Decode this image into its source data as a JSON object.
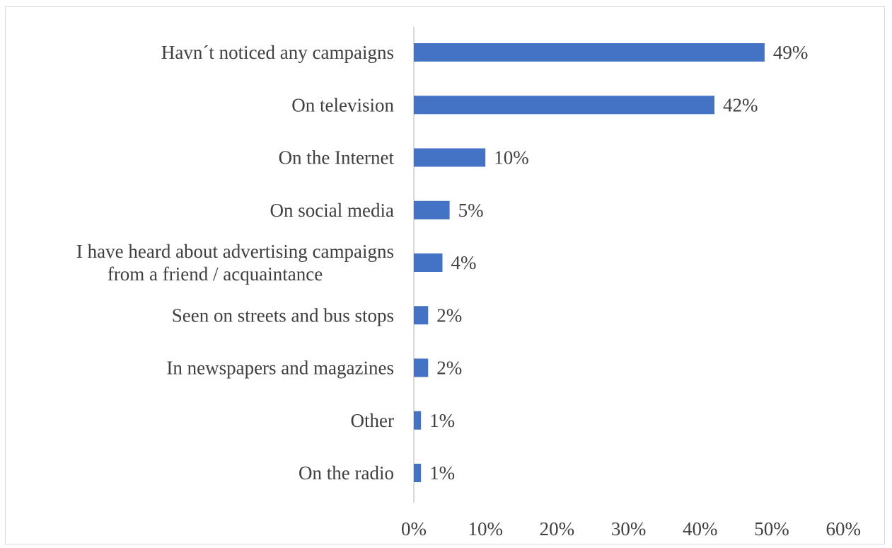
{
  "chart_data": {
    "type": "bar",
    "orientation": "horizontal",
    "categories": [
      [
        "Havn´t noticed any campaigns"
      ],
      [
        "On television "
      ],
      [
        "On the Internet"
      ],
      [
        "On social media"
      ],
      [
        "I have heard about advertising campaigns",
        "from a friend / acquaintance"
      ],
      [
        "Seen on streets and bus stops"
      ],
      [
        "In newspapers and magazines"
      ],
      [
        "Other"
      ],
      [
        "On the radio"
      ]
    ],
    "values": [
      49,
      42,
      10,
      5,
      4,
      2,
      2,
      1,
      1
    ],
    "value_labels": [
      "49%",
      "42%",
      "10%",
      "5%",
      "4%",
      "2%",
      "2%",
      "1%",
      "1%"
    ],
    "x_ticks": [
      "0%",
      "10%",
      "20%",
      "30%",
      "40%",
      "50%",
      "60%"
    ],
    "xlim": [
      0,
      60
    ],
    "grid": false,
    "legend": "none",
    "bar_color": "#4472c4"
  }
}
